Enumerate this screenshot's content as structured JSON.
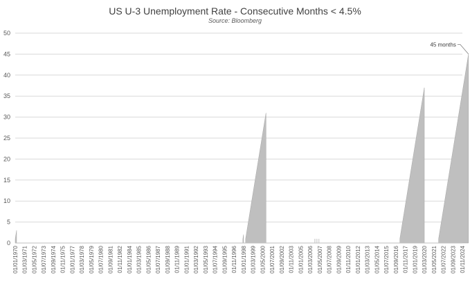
{
  "chart_data": {
    "type": "area",
    "title": "US U-3 Unemployment Rate - Consecutive Months < 4.5%",
    "subtitle": "Source: Bloomberg",
    "ylim": [
      0,
      50
    ],
    "yticks": [
      0,
      5,
      10,
      15,
      20,
      25,
      30,
      35,
      40,
      45,
      50
    ],
    "x_range": [
      "01/01/1970",
      "01/11/2024"
    ],
    "grid": true,
    "legend": "none",
    "fill_color": "#bfbfbf",
    "x_tick_labels": [
      "01/01/1970",
      "01/03/1971",
      "01/05/1972",
      "01/07/1973",
      "01/09/1974",
      "01/11/1975",
      "01/01/1977",
      "01/03/1978",
      "01/05/1979",
      "01/07/1980",
      "01/09/1981",
      "01/11/1982",
      "01/01/1984",
      "01/03/1985",
      "01/05/1986",
      "01/07/1987",
      "01/09/1988",
      "01/11/1989",
      "01/01/1991",
      "01/03/1992",
      "01/05/1993",
      "01/07/1994",
      "01/09/1995",
      "01/11/1996",
      "01/01/1998",
      "01/03/1999",
      "01/05/2000",
      "01/07/2001",
      "01/09/2002",
      "01/11/2003",
      "01/01/2005",
      "01/03/2006",
      "01/05/2007",
      "01/07/2008",
      "01/09/2009",
      "01/11/2010",
      "01/01/2012",
      "01/03/2013",
      "01/05/2014",
      "01/07/2015",
      "01/09/2016",
      "01/11/2017",
      "01/01/2019",
      "01/03/2020",
      "01/05/2021",
      "01/07/2022",
      "01/09/2023",
      "01/11/2024"
    ],
    "runs": [
      {
        "start": "1970-01",
        "months": 3
      },
      {
        "start": "1997-12",
        "months": 2
      },
      {
        "start": "1998-04",
        "months": 31
      },
      {
        "start": "2006-10",
        "months": 1
      },
      {
        "start": "2007-01",
        "months": 1
      },
      {
        "start": "2007-04",
        "months": 1
      },
      {
        "start": "2017-03",
        "months": 37
      },
      {
        "start": "2021-12",
        "months": 45
      }
    ],
    "annotations": [
      {
        "text": "45 months",
        "x": "2025-08",
        "y": 45
      }
    ]
  }
}
